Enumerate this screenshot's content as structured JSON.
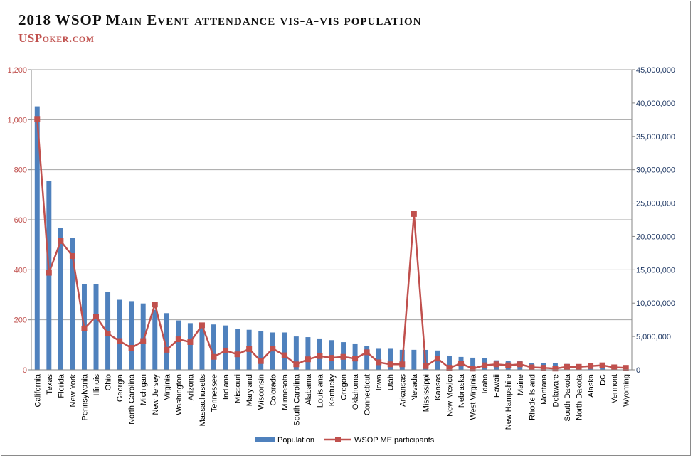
{
  "header": {
    "title": "2018 WSOP Main Event attendance vis-a-vis population",
    "brand": "USPoker.com"
  },
  "colors": {
    "population_bar": "#4f81bd",
    "participants_line": "#c0504d",
    "left_axis_text": "#c0504d",
    "right_axis_text": "#1f3864",
    "gridline": "#a6a6a6"
  },
  "chart_data": {
    "type": "bar",
    "title": "2018 WSOP Main Event attendance vis-a-vis population",
    "categories": [
      "California",
      "Texas",
      "Florida",
      "New York",
      "Pennsylvania",
      "Illinois",
      "Ohio",
      "Georgia",
      "North Carolina",
      "Michigan",
      "New Jersey",
      "Virginia",
      "Washington",
      "Arizona",
      "Massachusetts",
      "Tennessee",
      "Indiana",
      "Missouri",
      "Maryland",
      "Wisconsin",
      "Colorado",
      "Minnesota",
      "South Carolina",
      "Alabama",
      "Louisiana",
      "Kentucky",
      "Oregon",
      "Oklahoma",
      "Connecticut",
      "Iowa",
      "Utah",
      "Arkansas",
      "Nevada",
      "Mississippi",
      "Kansas",
      "New Mexico",
      "Nebraska",
      "West Virginia",
      "Idaho",
      "Hawaii",
      "New Hampshire",
      "Maine",
      "Rhode Island",
      "Montana",
      "Delaware",
      "South Dakota",
      "North Dakota",
      "Alaska",
      "DC",
      "Vermont",
      "Wyoming"
    ],
    "series": [
      {
        "name": "Population",
        "axis": "right",
        "render": "bar",
        "values": [
          39500000,
          28300000,
          21300000,
          19800000,
          12800000,
          12800000,
          11700000,
          10500000,
          10300000,
          9950000,
          9000000,
          8500000,
          7400000,
          7000000,
          6900000,
          6800000,
          6650000,
          6100000,
          6000000,
          5800000,
          5600000,
          5600000,
          5000000,
          4900000,
          4700000,
          4450000,
          4150000,
          3950000,
          3580000,
          3150000,
          3150000,
          3000000,
          3000000,
          2990000,
          2900000,
          2100000,
          1930000,
          1820000,
          1720000,
          1420000,
          1350000,
          1340000,
          1060000,
          1060000,
          960000,
          880000,
          760000,
          740000,
          700000,
          620000,
          580000
        ]
      },
      {
        "name": "WSOP ME participants",
        "axis": "left",
        "render": "line",
        "values": [
          1003,
          388,
          515,
          455,
          165,
          213,
          145,
          115,
          88,
          115,
          261,
          80,
          122,
          111,
          178,
          52,
          77,
          62,
          83,
          35,
          85,
          58,
          22,
          42,
          55,
          48,
          52,
          45,
          70,
          30,
          22,
          22,
          623,
          15,
          45,
          8,
          25,
          5,
          18,
          22,
          18,
          22,
          10,
          8,
          5,
          12,
          12,
          15,
          18,
          10,
          8
        ]
      }
    ],
    "ylim_left": [
      0,
      1200
    ],
    "yticks_left": [
      "0",
      "200",
      "400",
      "600",
      "800",
      "1,000",
      "1,200"
    ],
    "ylim_right": [
      0,
      45000000
    ],
    "yticks_right": [
      "0",
      "5,000,000",
      "10,000,000",
      "15,000,000",
      "20,000,000",
      "25,000,000",
      "30,000,000",
      "35,000,000",
      "40,000,000",
      "45,000,000"
    ],
    "xlabel": "",
    "ylabel": "",
    "grid": true,
    "legend": "bottom"
  }
}
